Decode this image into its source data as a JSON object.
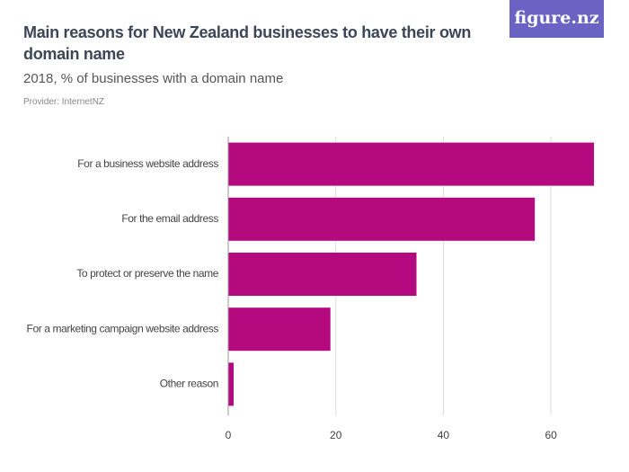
{
  "logo": "figure.nz",
  "chart_data": {
    "type": "bar",
    "orientation": "horizontal",
    "title": "Main reasons for New Zealand businesses to have their own domain name",
    "subtitle": "2018, % of businesses with a domain name",
    "source": "Provider: InternetNZ",
    "categories": [
      "For a business website address",
      "For the email address",
      "To protect or preserve the name",
      "For a marketing campaign website address",
      "Other reason"
    ],
    "values": [
      68,
      57,
      35,
      19,
      1
    ],
    "color": "#b5097f",
    "xlim": [
      0,
      70
    ],
    "xticks": [
      0,
      20,
      40,
      60
    ],
    "grid": true
  }
}
